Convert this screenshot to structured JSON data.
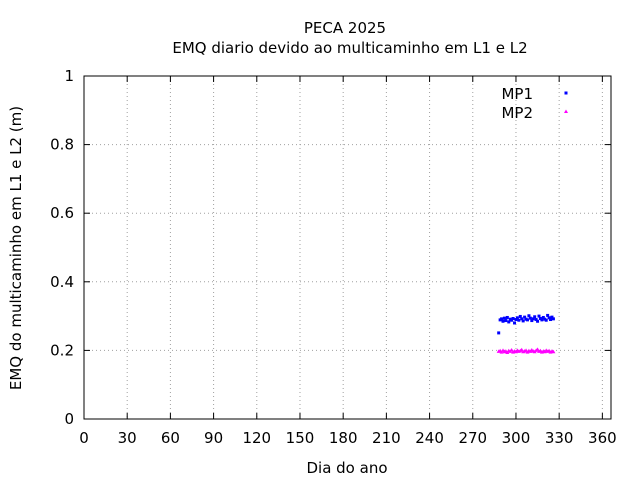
{
  "chart_data": {
    "type": "scatter",
    "title": "PECA 2025",
    "subtitle": "EMQ diario devido ao multicaminho em L1 e L2",
    "xlabel": "Dia do ano",
    "ylabel": "EMQ do multicaminho em L1 e L2 (m)",
    "xlim": [
      0,
      366
    ],
    "ylim": [
      0,
      1
    ],
    "xticks": [
      0,
      30,
      60,
      90,
      120,
      150,
      180,
      210,
      240,
      270,
      300,
      330,
      360
    ],
    "yticks": [
      0,
      0.2,
      0.4,
      0.6,
      0.8,
      1
    ],
    "xtick_labels": [
      "0",
      "30",
      "60",
      "90",
      "120",
      "150",
      "180",
      "210",
      "240",
      "270",
      "300",
      "330",
      "360"
    ],
    "ytick_labels": [
      "0",
      "0.2",
      "0.4",
      "0.6",
      "0.8",
      "1"
    ],
    "grid": true,
    "legend_position": "top-right",
    "series": [
      {
        "name": "MP1",
        "color": "#0000ff",
        "marker": "square",
        "x": [
          288,
          289,
          290,
          291,
          292,
          293,
          294,
          295,
          296,
          297,
          298,
          299,
          300,
          301,
          302,
          303,
          304,
          305,
          306,
          307,
          308,
          309,
          310,
          311,
          312,
          313,
          314,
          315,
          316,
          317,
          318,
          319,
          320,
          321,
          322,
          323,
          324,
          325,
          326
        ],
        "y": [
          0.251,
          0.289,
          0.292,
          0.285,
          0.294,
          0.287,
          0.296,
          0.283,
          0.291,
          0.288,
          0.293,
          0.28,
          0.29,
          0.295,
          0.288,
          0.299,
          0.292,
          0.286,
          0.297,
          0.291,
          0.289,
          0.301,
          0.294,
          0.287,
          0.292,
          0.298,
          0.29,
          0.285,
          0.3,
          0.293,
          0.289,
          0.296,
          0.291,
          0.288,
          0.302,
          0.295,
          0.29,
          0.297,
          0.292
        ]
      },
      {
        "name": "MP2",
        "color": "#ff00ff",
        "marker": "triangle",
        "x": [
          288,
          289,
          290,
          291,
          292,
          293,
          294,
          295,
          296,
          297,
          298,
          299,
          300,
          301,
          302,
          303,
          304,
          305,
          306,
          307,
          308,
          309,
          310,
          311,
          312,
          313,
          314,
          315,
          316,
          317,
          318,
          319,
          320,
          321,
          322,
          323,
          324,
          325,
          326
        ],
        "y": [
          0.197,
          0.199,
          0.195,
          0.2,
          0.196,
          0.198,
          0.194,
          0.199,
          0.197,
          0.201,
          0.195,
          0.198,
          0.196,
          0.2,
          0.197,
          0.199,
          0.202,
          0.196,
          0.198,
          0.2,
          0.195,
          0.199,
          0.197,
          0.201,
          0.198,
          0.196,
          0.2,
          0.203,
          0.197,
          0.199,
          0.195,
          0.198,
          0.196,
          0.2,
          0.197,
          0.199,
          0.195,
          0.198,
          0.196
        ]
      }
    ]
  }
}
